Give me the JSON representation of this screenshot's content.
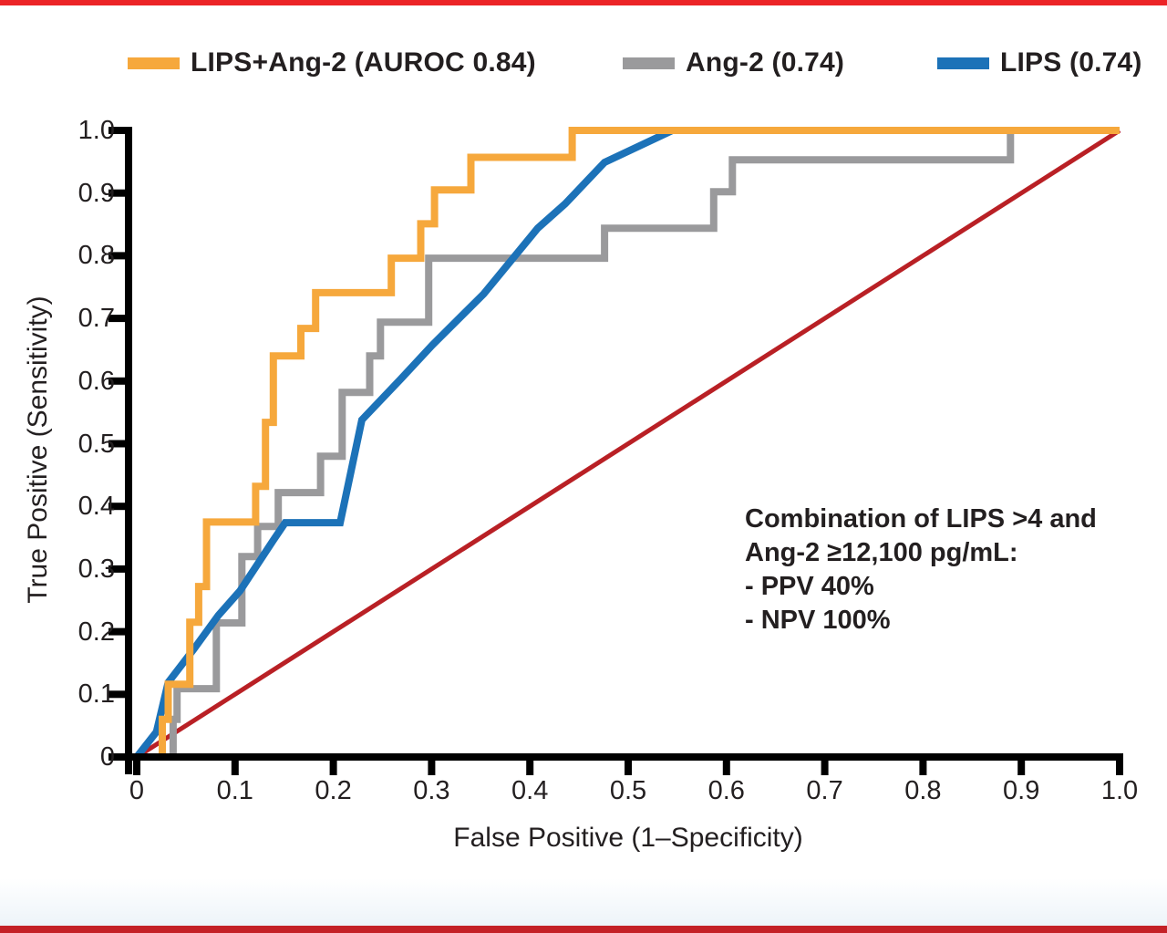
{
  "page": {
    "background": "#ffffff",
    "top_bar_color": "#EC2427",
    "bottom_bar_color": "#C42127"
  },
  "legend": {
    "items": [
      {
        "label": "LIPS+Ang-2 (AUROC 0.84)",
        "color": "#F6A83C"
      },
      {
        "label": "Ang-2 (0.74)",
        "color": "#9A9A9C"
      },
      {
        "label": "LIPS (0.74)",
        "color": "#1C72B8"
      }
    ]
  },
  "annotation": {
    "lines": [
      "Combination of LIPS >4 and",
      "Ang-2 ≥12,100 pg/mL:",
      "- PPV 40%",
      "- NPV 100%"
    ]
  },
  "axes": {
    "x_label": "False Positive (1–Specificity)",
    "y_label": "True Positive (Sensitivity)",
    "x_tick_labels": [
      "0",
      "0.1",
      "0.2",
      "0.3",
      "0.4",
      "0.5",
      "0.6",
      "0.7",
      "0.8",
      "0.9",
      "1.0"
    ],
    "x_tick_values": [
      0,
      0.1,
      0.2,
      0.3,
      0.4,
      0.5,
      0.6,
      0.7,
      0.8,
      0.9,
      1.0
    ],
    "y_tick_labels": [
      "0",
      "0.1",
      "0.2",
      "0.3",
      "0.4",
      "0.5",
      "0.6",
      "0.7",
      "0.8",
      "0.9",
      "1.0"
    ],
    "y_tick_values": [
      0,
      0.1,
      0.2,
      0.3,
      0.4,
      0.5,
      0.6,
      0.7,
      0.8,
      0.9,
      1.0
    ],
    "axis_color": "#000000"
  },
  "chart_data": {
    "type": "line",
    "subtype": "roc-curves",
    "title": "",
    "xlabel": "False Positive (1–Specificity)",
    "ylabel": "True Positive (Sensitivity)",
    "xlim": [
      0,
      1
    ],
    "ylim": [
      0,
      1
    ],
    "grid": false,
    "legend_position": "top",
    "series": [
      {
        "name": "LIPS+Ang-2 (AUROC 0.84)",
        "auroc": 0.84,
        "color": "#F6A83C",
        "style": "step",
        "points": [
          [
            0,
            0
          ],
          [
            0.026,
            0
          ],
          [
            0.026,
            0.06
          ],
          [
            0.032,
            0.06
          ],
          [
            0.032,
            0.116
          ],
          [
            0.054,
            0.116
          ],
          [
            0.054,
            0.215
          ],
          [
            0.063,
            0.215
          ],
          [
            0.063,
            0.272
          ],
          [
            0.071,
            0.272
          ],
          [
            0.071,
            0.375
          ],
          [
            0.121,
            0.375
          ],
          [
            0.121,
            0.432
          ],
          [
            0.131,
            0.432
          ],
          [
            0.131,
            0.534
          ],
          [
            0.139,
            0.534
          ],
          [
            0.139,
            0.64
          ],
          [
            0.167,
            0.64
          ],
          [
            0.167,
            0.684
          ],
          [
            0.182,
            0.684
          ],
          [
            0.182,
            0.741
          ],
          [
            0.259,
            0.741
          ],
          [
            0.259,
            0.796
          ],
          [
            0.289,
            0.796
          ],
          [
            0.289,
            0.851
          ],
          [
            0.303,
            0.851
          ],
          [
            0.303,
            0.905
          ],
          [
            0.34,
            0.905
          ],
          [
            0.34,
            0.957
          ],
          [
            0.443,
            0.957
          ],
          [
            0.443,
            1
          ],
          [
            1,
            1
          ]
        ]
      },
      {
        "name": "Ang-2 (0.74)",
        "auroc": 0.74,
        "color": "#9A9A9C",
        "style": "step",
        "points": [
          [
            0,
            0
          ],
          [
            0.037,
            0
          ],
          [
            0.037,
            0.06
          ],
          [
            0.041,
            0.06
          ],
          [
            0.041,
            0.109
          ],
          [
            0.081,
            0.109
          ],
          [
            0.081,
            0.214
          ],
          [
            0.107,
            0.214
          ],
          [
            0.107,
            0.32
          ],
          [
            0.123,
            0.32
          ],
          [
            0.123,
            0.368
          ],
          [
            0.144,
            0.368
          ],
          [
            0.144,
            0.422
          ],
          [
            0.187,
            0.422
          ],
          [
            0.187,
            0.48
          ],
          [
            0.209,
            0.48
          ],
          [
            0.209,
            0.582
          ],
          [
            0.237,
            0.582
          ],
          [
            0.237,
            0.64
          ],
          [
            0.248,
            0.64
          ],
          [
            0.248,
            0.694
          ],
          [
            0.297,
            0.694
          ],
          [
            0.297,
            0.796
          ],
          [
            0.476,
            0.796
          ],
          [
            0.476,
            0.844
          ],
          [
            0.587,
            0.844
          ],
          [
            0.587,
            0.902
          ],
          [
            0.606,
            0.902
          ],
          [
            0.606,
            0.953
          ],
          [
            0.889,
            0.953
          ],
          [
            0.889,
            0.995
          ]
        ]
      },
      {
        "name": "LIPS (0.74)",
        "auroc": 0.74,
        "color": "#1C72B8",
        "style": "line",
        "points": [
          [
            0,
            0
          ],
          [
            0.02,
            0.04
          ],
          [
            0.032,
            0.119
          ],
          [
            0.058,
            0.172
          ],
          [
            0.083,
            0.226
          ],
          [
            0.105,
            0.265
          ],
          [
            0.121,
            0.303
          ],
          [
            0.139,
            0.346
          ],
          [
            0.151,
            0.374
          ],
          [
            0.207,
            0.374
          ],
          [
            0.229,
            0.538
          ],
          [
            0.269,
            0.604
          ],
          [
            0.301,
            0.658
          ],
          [
            0.353,
            0.739
          ],
          [
            0.408,
            0.844
          ],
          [
            0.436,
            0.883
          ],
          [
            0.476,
            0.949
          ],
          [
            0.545,
            1
          ],
          [
            1,
            1
          ]
        ]
      }
    ],
    "reference_line": {
      "name": "chance-diagonal",
      "color": "#B92025",
      "points": [
        [
          0,
          0
        ],
        [
          1,
          1
        ]
      ]
    }
  }
}
